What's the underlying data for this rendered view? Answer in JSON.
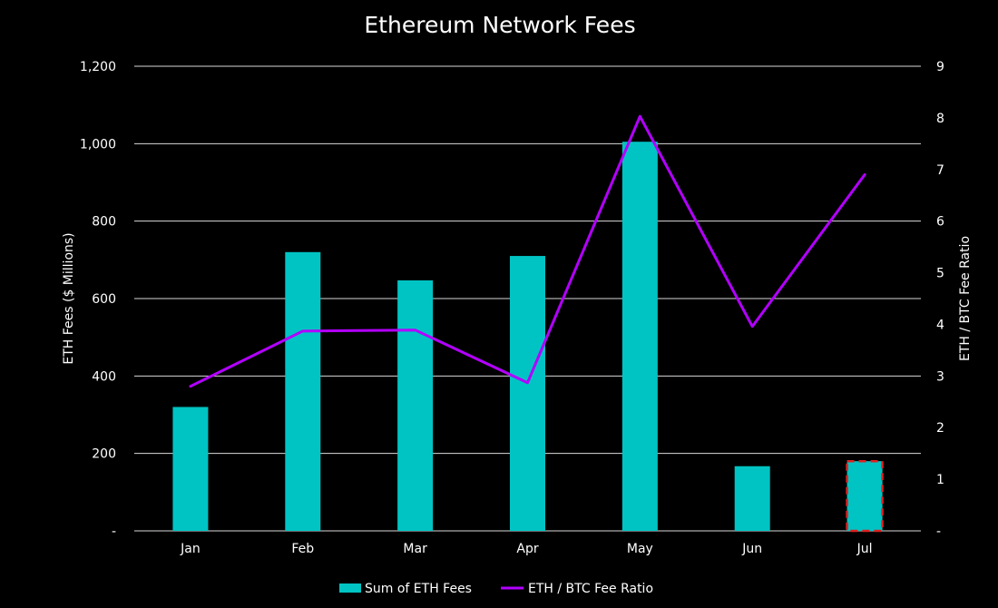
{
  "chart_data": {
    "type": "bar",
    "title": "Ethereum Network Fees",
    "categories": [
      "Jan",
      "Feb",
      "Mar",
      "Apr",
      "May",
      "Jun",
      "Jul"
    ],
    "series": [
      {
        "name": "Sum of ETH Fees",
        "type": "bar",
        "axis": "left",
        "values": [
          320,
          720,
          647,
          710,
          1005,
          167,
          180
        ]
      },
      {
        "name": "ETH / BTC Fee Ratio",
        "type": "line",
        "axis": "right",
        "values": [
          2.8,
          3.87,
          3.89,
          2.87,
          8.03,
          3.96,
          6.9
        ]
      }
    ],
    "ylabel": "ETH Fees ($ Millions)",
    "y2label": "ETH / BTC Fee Ratio",
    "ylim": [
      0,
      1200
    ],
    "y2lim": [
      0,
      9
    ],
    "yticks": [
      "-",
      "200",
      "400",
      "600",
      "800",
      "1,000",
      "1,200"
    ],
    "y2ticks": [
      "-",
      "1",
      "2",
      "3",
      "4",
      "5",
      "6",
      "7",
      "8",
      "9"
    ],
    "grid": true,
    "legend_position": "bottom",
    "highlighted_category": "Jul",
    "colors": {
      "background": "#000000",
      "bar": "#00c4c4",
      "line": "#b300ff",
      "grid": "#d9d9d9",
      "text": "#ffffff",
      "highlight": "#e02020"
    }
  }
}
